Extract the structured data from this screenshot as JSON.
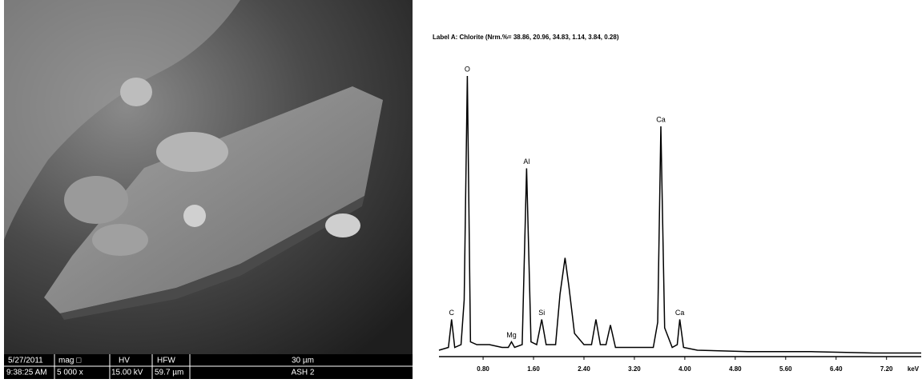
{
  "image_info": {
    "date": "5/27/2011",
    "time": "9:38:25 AM",
    "mag_label": "mag □",
    "mag": "5 000 x",
    "hv_label": "HV",
    "hv": "15.00 kV",
    "hfw_label": "HFW",
    "hfw": "59.7 µm",
    "scale": "30 µm",
    "sample": "ASH 2"
  },
  "chart_data": {
    "type": "line",
    "title": "Label A: Chlorite (Nrm.%= 38.86, 20.96, 34.83, 1.14, 3.84, 0.28)",
    "x_label": "keV",
    "color": "#000000",
    "x": [
      0.1,
      0.25,
      0.3,
      0.35,
      0.45,
      0.5,
      0.55,
      0.6,
      0.7,
      0.9,
      1.1,
      1.2,
      1.25,
      1.3,
      1.42,
      1.49,
      1.56,
      1.65,
      1.73,
      1.8,
      1.95,
      2.02,
      2.1,
      2.16,
      2.25,
      2.4,
      2.52,
      2.59,
      2.66,
      2.75,
      2.82,
      2.9,
      3.2,
      3.5,
      3.57,
      3.62,
      3.68,
      3.8,
      3.88,
      3.92,
      3.98,
      4.2,
      5,
      6,
      7,
      7.75
    ],
    "values": [
      2,
      3,
      13,
      3,
      4,
      20,
      100,
      5,
      4,
      4,
      3,
      3,
      5,
      3,
      4,
      67,
      5,
      4,
      13,
      4,
      4,
      22,
      35,
      25,
      8,
      4,
      4,
      13,
      4,
      4,
      11,
      3,
      3,
      3,
      12,
      82,
      10,
      3,
      4,
      13,
      3,
      2,
      1.5,
      1.5,
      1,
      1
    ],
    "xlim": [
      0.1,
      7.75
    ],
    "ylim": [
      0,
      100
    ],
    "xticks": [
      {
        "value": 0.8,
        "label": "0.80"
      },
      {
        "value": 1.6,
        "label": "1.60"
      },
      {
        "value": 2.4,
        "label": "2.40"
      },
      {
        "value": 3.2,
        "label": "3.20"
      },
      {
        "value": 4.0,
        "label": "4.00"
      },
      {
        "value": 4.8,
        "label": "4.80"
      },
      {
        "value": 5.6,
        "label": "5.60"
      },
      {
        "value": 6.4,
        "label": "6.40"
      },
      {
        "value": 7.2,
        "label": "7.20"
      }
    ],
    "annotations": [
      {
        "text": "C",
        "x": 0.3,
        "y": 13
      },
      {
        "text": "O",
        "x": 0.55,
        "y": 100
      },
      {
        "text": "Mg",
        "x": 1.25,
        "y": 5
      },
      {
        "text": "Al",
        "x": 1.49,
        "y": 67
      },
      {
        "text": "Si",
        "x": 1.73,
        "y": 13
      },
      {
        "text": "Ca",
        "x": 3.62,
        "y": 82
      },
      {
        "text": "Ca",
        "x": 3.92,
        "y": 13
      }
    ]
  }
}
